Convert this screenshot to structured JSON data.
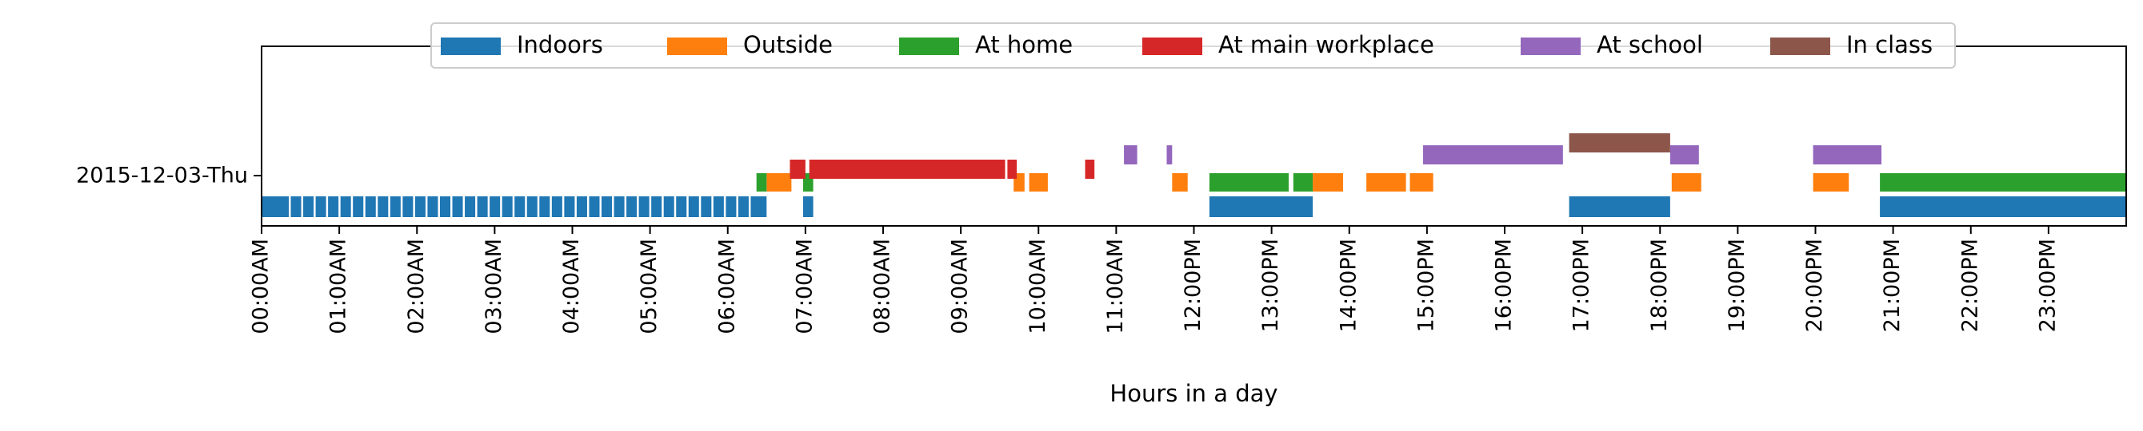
{
  "chart_data": {
    "type": "timeline",
    "xlabel": "Hours in a day",
    "xlim_hours": [
      0,
      24
    ],
    "row_label": "2015-12-03-Thu",
    "x_ticks": [
      "00:00AM",
      "01:00AM",
      "02:00AM",
      "03:00AM",
      "04:00AM",
      "05:00AM",
      "06:00AM",
      "07:00AM",
      "08:00AM",
      "09:00AM",
      "10:00AM",
      "11:00AM",
      "12:00PM",
      "13:00PM",
      "14:00PM",
      "15:00PM",
      "16:00PM",
      "17:00PM",
      "18:00PM",
      "19:00PM",
      "20:00PM",
      "21:00PM",
      "22:00PM",
      "23:00PM"
    ],
    "legend_position": "top-center",
    "series": [
      {
        "name": "Indoors",
        "color": "#1f77b4",
        "lane": 0,
        "intervals": [
          [
            0.0,
            6.5
          ],
          [
            6.97,
            7.1
          ],
          [
            12.2,
            13.53
          ],
          [
            16.83,
            18.13
          ],
          [
            20.83,
            24.0
          ]
        ]
      },
      {
        "name": "Outside",
        "color": "#ff7f0e",
        "lane": 1,
        "intervals": [
          [
            6.5,
            6.82
          ],
          [
            9.68,
            9.82
          ],
          [
            9.88,
            10.12
          ],
          [
            11.72,
            11.92
          ],
          [
            13.53,
            13.92
          ],
          [
            14.22,
            14.73
          ],
          [
            14.78,
            15.08
          ],
          [
            18.15,
            18.53
          ],
          [
            19.97,
            20.43
          ]
        ]
      },
      {
        "name": "At home",
        "color": "#2ca02c",
        "lane": 1,
        "intervals": [
          [
            6.37,
            6.5
          ],
          [
            6.97,
            7.1
          ],
          [
            12.2,
            13.22
          ],
          [
            13.28,
            13.53
          ],
          [
            20.83,
            24.0
          ]
        ]
      },
      {
        "name": "At main workplace",
        "color": "#d62728",
        "lane": 2,
        "intervals": [
          [
            6.8,
            7.0
          ],
          [
            7.05,
            9.57
          ],
          [
            9.6,
            9.72
          ],
          [
            10.6,
            10.72
          ]
        ]
      },
      {
        "name": "At school",
        "color": "#9467bd",
        "lane": 3,
        "intervals": [
          [
            11.1,
            11.27
          ],
          [
            11.65,
            11.72
          ],
          [
            14.95,
            16.75
          ],
          [
            18.13,
            18.5
          ],
          [
            19.97,
            20.85
          ]
        ]
      },
      {
        "name": "In class",
        "color": "#8c564b",
        "lane": 4,
        "intervals": [
          [
            16.83,
            18.13
          ]
        ]
      }
    ]
  }
}
